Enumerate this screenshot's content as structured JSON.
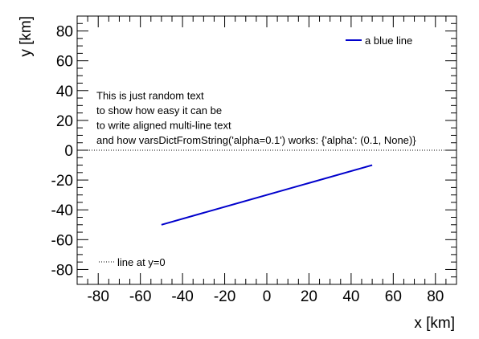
{
  "chart_data": {
    "type": "line",
    "xlabel": "x [km]",
    "ylabel": "y [km]",
    "xlim": [
      -90,
      90
    ],
    "ylim": [
      -90,
      90
    ],
    "x_ticks": [
      -80,
      -60,
      -40,
      -20,
      0,
      20,
      40,
      60,
      80
    ],
    "y_ticks": [
      -80,
      -60,
      -40,
      -20,
      0,
      20,
      40,
      60,
      80
    ],
    "grid": false,
    "series": [
      {
        "name": "a blue line",
        "x": [
          -50,
          50
        ],
        "y": [
          -50,
          -10
        ],
        "color": "#0000cc",
        "style": "solid"
      },
      {
        "name": "line at y=0",
        "x": [
          -90,
          90
        ],
        "y": [
          0,
          0
        ],
        "color": "#000000",
        "style": "dotted"
      }
    ],
    "annotation_lines": [
      "This is just random text",
      "to show how easy it can be",
      "to write aligned multi-line text",
      "and how varsDictFromString('alpha=0.1') works: {'alpha': (0.1, None)}"
    ],
    "legends": [
      {
        "position": "top-right",
        "entries": [
          "a blue line"
        ]
      },
      {
        "position": "bottom-left",
        "entries": [
          "line at y=0"
        ]
      }
    ]
  }
}
